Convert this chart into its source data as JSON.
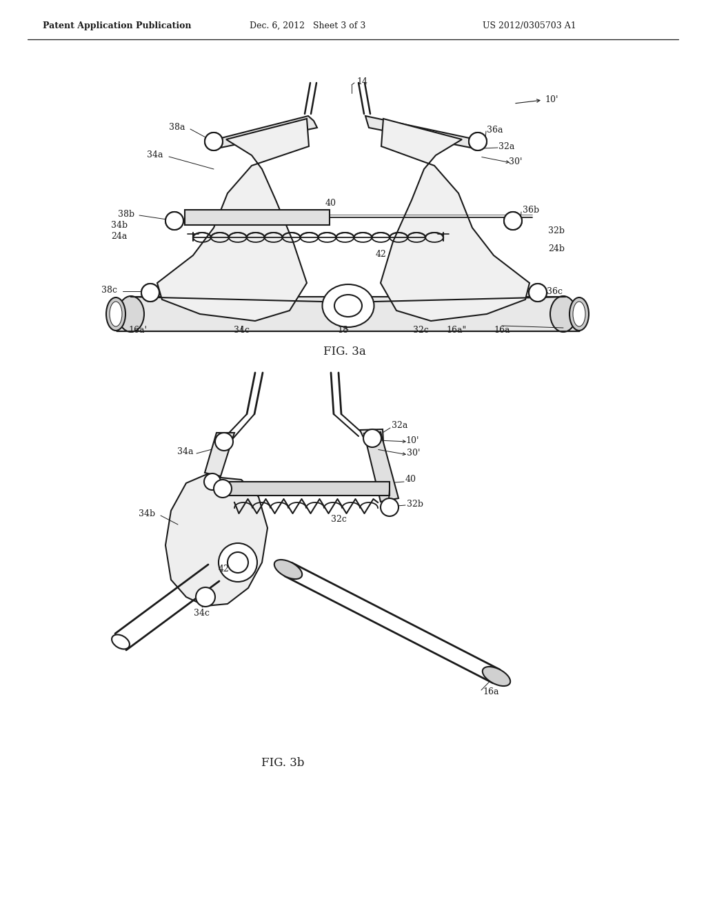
{
  "bg": "#ffffff",
  "lc": "#1a1a1a",
  "lw": 1.5,
  "tlw": 0.8,
  "fs": 9,
  "header_left": "Patent Application Publication",
  "header_mid": "Dec. 6, 2012   Sheet 3 of 3",
  "header_right": "US 2012/0305703 A1",
  "fig3a": "FIG. 3a",
  "fig3b": "FIG. 3b"
}
